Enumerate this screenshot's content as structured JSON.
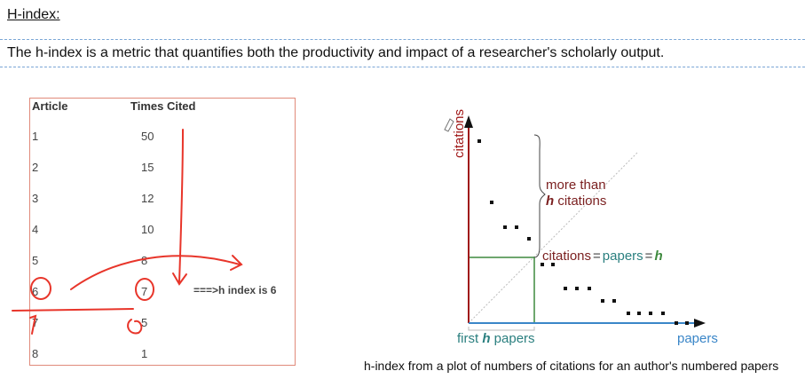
{
  "heading": "H-index:",
  "description": "The h-index is a metric that quantifies both the productivity and impact of a researcher's scholarly output.",
  "table": {
    "headers": [
      "Article",
      "Times Cited"
    ],
    "rows": [
      {
        "article": "1",
        "cited": "50"
      },
      {
        "article": "2",
        "cited": "15"
      },
      {
        "article": "3",
        "cited": "12"
      },
      {
        "article": "4",
        "cited": "10"
      },
      {
        "article": "5",
        "cited": "8"
      },
      {
        "article": "6",
        "cited": "7"
      },
      {
        "article": "7",
        "cited": "5"
      },
      {
        "article": "8",
        "cited": "1"
      }
    ],
    "annotation": "===>h index is 6"
  },
  "graph": {
    "y_axis": "citations",
    "x_axis": "papers",
    "more_than": "more than",
    "h_citations_h": "h",
    "h_citations_rest": " citations",
    "eq_citations": "citations",
    "eq_sign": "=",
    "eq_papers": "papers",
    "eq_h": "h",
    "first": "first ",
    "first_h": "h",
    "first_papers": " papers",
    "colors": {
      "red": "#a01818",
      "green": "#3f8a3f",
      "blue": "#3a86c8",
      "maroon": "#7a1f1f",
      "teal": "#2a7f7f"
    }
  },
  "caption": "h-index from a plot of numbers of citations for an author's numbered papers"
}
